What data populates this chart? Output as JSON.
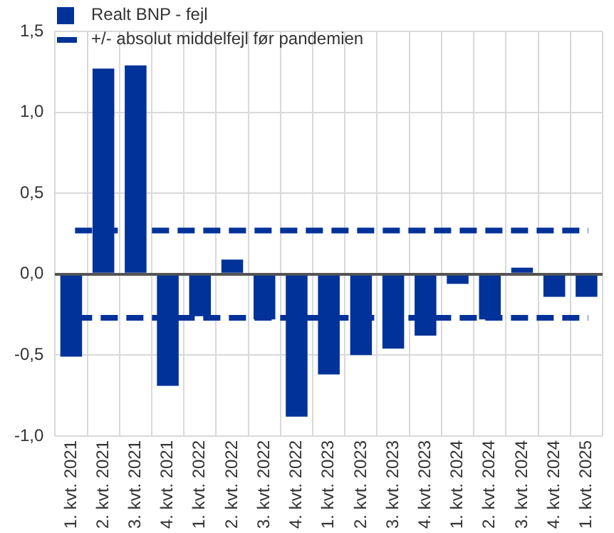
{
  "chart_data": {
    "type": "bar",
    "categories": [
      "1. kvt. 2021",
      "2. kvt. 2021",
      "3. kvt. 2021",
      "4. kvt. 2021",
      "1. kvt. 2022",
      "2. kvt. 2022",
      "3. kvt. 2022",
      "4. kvt. 2022",
      "1. kvt. 2023",
      "2. kvt. 2023",
      "3. kvt. 2023",
      "4. kvt. 2023",
      "1. kvt. 2024",
      "2. kvt. 2024",
      "3. kvt. 2024",
      "4. kvt. 2024",
      "1. kvt. 2025"
    ],
    "series": [
      {
        "name": "Realt BNP - fejl",
        "color": "#003299",
        "values": [
          -0.51,
          1.27,
          1.29,
          -0.69,
          -0.26,
          0.09,
          -0.28,
          -0.88,
          -0.62,
          -0.5,
          -0.46,
          -0.38,
          -0.06,
          -0.28,
          0.04,
          -0.14,
          -0.14
        ]
      }
    ],
    "ylim": [
      -1.0,
      1.5
    ],
    "yticks": [
      {
        "value": -1.0,
        "label": "-1,0"
      },
      {
        "value": -0.5,
        "label": "-0,5"
      },
      {
        "value": 0,
        "label": "0,0"
      },
      {
        "value": 0.5,
        "label": "0,5"
      },
      {
        "value": 1.0,
        "label": "1,0"
      },
      {
        "value": 1.5,
        "label": "1,5"
      }
    ],
    "ref_lines": [
      {
        "axis": "y",
        "value": 0.27,
        "label": "+/- absolut middelfejl før pandemien",
        "color": "#003299",
        "line_style": "dashed"
      },
      {
        "axis": "y",
        "value": -0.27,
        "label": null,
        "color": "#003299",
        "line_style": "dashed"
      }
    ],
    "grid": true,
    "legend": "top left"
  }
}
